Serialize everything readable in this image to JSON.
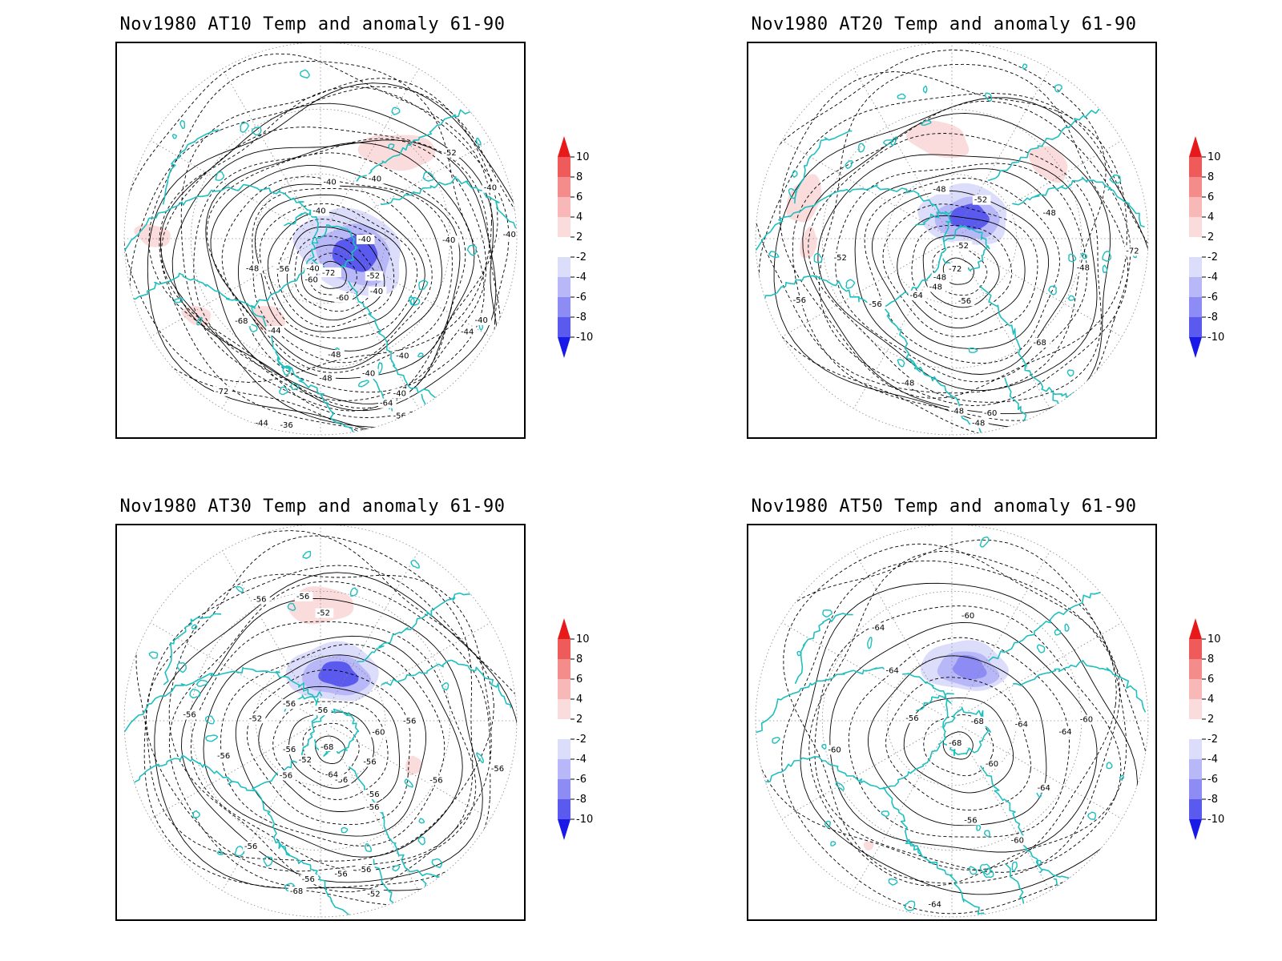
{
  "panels": [
    {
      "title": "Nov1980 AT10 Temp and anomaly 61-90",
      "pole_min_label": "-72",
      "contour_labels": [
        "-40",
        "-40",
        "-44",
        "-48",
        "-52",
        "-56",
        "-60",
        "-68",
        "-72",
        "-36",
        "-56",
        "-40",
        "-40",
        "-48",
        "-44",
        "-40",
        "-40",
        "-64",
        "-60",
        "-56",
        "-52",
        "-48",
        "-44",
        "-40",
        "-40",
        "-40",
        "-40",
        "-40",
        "-40",
        "-40"
      ],
      "anomaly_patches": [
        {
          "kind": "warm",
          "level": 2
        },
        {
          "kind": "warm",
          "level": 2
        },
        {
          "kind": "warm",
          "level": 2
        },
        {
          "kind": "warm",
          "level": 2
        },
        {
          "kind": "cold",
          "level": -8
        }
      ]
    },
    {
      "title": "Nov1980 AT20 Temp and anomaly 61-90",
      "pole_min_label": "-72",
      "contour_labels": [
        "-52",
        "-48",
        "-48",
        "-56",
        "-52",
        "-56",
        "-72",
        "-48",
        "-48",
        "-48",
        "-48",
        "-68",
        "-64",
        "-60",
        "-56",
        "-52",
        "-48",
        "-48"
      ],
      "anomaly_patches": [
        {
          "kind": "warm",
          "level": 2
        },
        {
          "kind": "warm",
          "level": 2
        },
        {
          "kind": "warm",
          "level": 2
        },
        {
          "kind": "warm",
          "level": 2
        },
        {
          "kind": "cold",
          "level": -8
        }
      ]
    },
    {
      "title": "Nov1980 AT30 Temp and anomaly 61-90",
      "pole_min_label": "-68",
      "contour_labels": [
        "-56",
        "-56",
        "-56",
        "-56",
        "-56",
        "-56",
        "-52",
        "-52",
        "-52",
        "-56",
        "-56",
        "-56",
        "-56",
        "-56",
        "-52",
        "-56",
        "-68",
        "-64",
        "-60",
        "-56",
        "-56",
        "-56",
        "-56",
        "-56",
        "-56",
        "-56"
      ],
      "anomaly_patches": [
        {
          "kind": "warm",
          "level": 2
        },
        {
          "kind": "warm",
          "level": 2
        },
        {
          "kind": "cold",
          "level": -8
        }
      ]
    },
    {
      "title": "Nov1980 AT50 Temp and anomaly 61-90",
      "pole_min_label": "-68",
      "contour_labels": [
        "-64",
        "-60",
        "-56",
        "-56",
        "-68",
        "-64",
        "-60",
        "-60",
        "-60",
        "-60",
        "-64",
        "-64",
        "-64",
        "-64"
      ],
      "anomaly_patches": [
        {
          "kind": "warm",
          "level": 2
        },
        {
          "kind": "cold",
          "level": -6
        }
      ]
    }
  ],
  "colorbar": {
    "labels": [
      "10",
      "8",
      "6",
      "4",
      "2",
      "-2",
      "-4",
      "-6",
      "-8",
      "-10"
    ],
    "colors": {
      "warm_10": "#e8191a",
      "warm_8": "#ef5a5a",
      "warm_6": "#f48c8c",
      "warm_4": "#f8b8b8",
      "warm_2": "#fbdcdc",
      "neutral": "#ffffff",
      "cold_2": "#dcdcfb",
      "cold_4": "#b8b8f8",
      "cold_6": "#8c8cf4",
      "cold_8": "#5a5aef",
      "cold_10": "#1919e8"
    }
  },
  "colors": {
    "coastline": "#1fbfbf",
    "contour": "#000000",
    "grid": "#888888",
    "frame": "#000000"
  }
}
